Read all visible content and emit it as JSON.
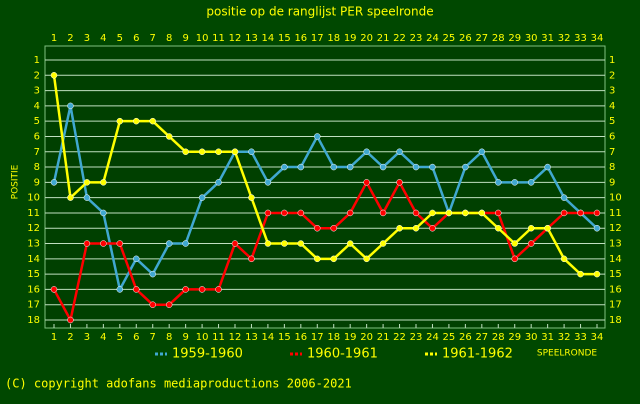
{
  "chart_data": {
    "type": "line",
    "title": "positie op de ranglijst PER speelronde",
    "y_label": "POSITIE",
    "x_label": "SPEELRONDE",
    "footer": "(C) copyright adofans mediaproductions 2006-2021",
    "x": [
      1,
      2,
      3,
      4,
      5,
      6,
      7,
      8,
      9,
      10,
      11,
      12,
      13,
      14,
      15,
      16,
      17,
      18,
      19,
      20,
      21,
      22,
      23,
      24,
      25,
      26,
      27,
      28,
      29,
      30,
      31,
      32,
      33,
      34
    ],
    "xlim": [
      1,
      34
    ],
    "xticks": [
      1,
      2,
      3,
      4,
      5,
      6,
      7,
      8,
      9,
      10,
      11,
      12,
      13,
      14,
      15,
      16,
      17,
      18,
      19,
      20,
      21,
      22,
      23,
      24,
      25,
      26,
      27,
      28,
      29,
      30,
      31,
      32,
      33,
      34
    ],
    "ylim": [
      1,
      18
    ],
    "yticks": [
      1,
      2,
      3,
      4,
      5,
      6,
      7,
      8,
      9,
      10,
      11,
      12,
      13,
      14,
      15,
      16,
      17,
      18
    ],
    "y_inverted": true,
    "grid": true,
    "series": [
      {
        "name": "1959-1960",
        "color": "#40a8d0",
        "values": [
          9,
          4,
          10,
          11,
          16,
          14,
          15,
          13,
          13,
          10,
          9,
          7,
          7,
          9,
          8,
          8,
          6,
          8,
          8,
          7,
          8,
          7,
          8,
          8,
          11,
          8,
          7,
          9,
          9,
          9,
          8,
          10,
          11,
          12
        ]
      },
      {
        "name": "1960-1961",
        "color": "#ff0000",
        "values": [
          16,
          18,
          13,
          13,
          13,
          16,
          17,
          17,
          16,
          16,
          16,
          13,
          14,
          11,
          11,
          11,
          12,
          12,
          11,
          9,
          11,
          9,
          11,
          12,
          11,
          11,
          11,
          11,
          14,
          13,
          12,
          11,
          11,
          11
        ]
      },
      {
        "name": "1961-1962",
        "color": "#ffff00",
        "values": [
          2,
          10,
          9,
          9,
          5,
          5,
          5,
          6,
          7,
          7,
          7,
          7,
          10,
          13,
          13,
          13,
          14,
          14,
          13,
          14,
          13,
          12,
          12,
          11,
          11,
          11,
          11,
          12,
          13,
          12,
          12,
          14,
          15,
          15
        ]
      }
    ]
  }
}
